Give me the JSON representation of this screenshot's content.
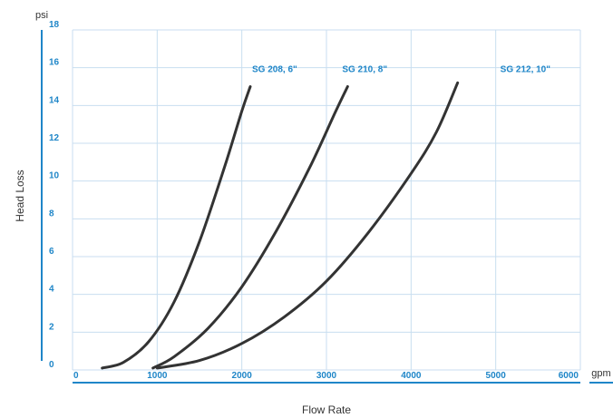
{
  "chart_data": {
    "type": "line",
    "xlabel": "Flow Rate",
    "ylabel": "Head Loss",
    "x_unit": "gpm",
    "y_unit": "psi",
    "xlim": [
      0,
      6000
    ],
    "ylim": [
      0,
      18
    ],
    "x_ticks": [
      0,
      1000,
      2000,
      3000,
      4000,
      5000,
      6000
    ],
    "y_ticks": [
      0,
      2,
      4,
      6,
      8,
      10,
      12,
      14,
      16,
      18
    ],
    "grid": true,
    "series": [
      {
        "name": "SG 208, 6\"",
        "x": [
          350,
          600,
          900,
          1200,
          1500,
          1800,
          2000,
          2100
        ],
        "y": [
          0.1,
          0.4,
          1.5,
          3.6,
          6.8,
          10.8,
          13.7,
          15.0
        ]
      },
      {
        "name": "SG 210, 8\"",
        "x": [
          950,
          1200,
          1600,
          2000,
          2400,
          2800,
          3100,
          3250
        ],
        "y": [
          0.1,
          0.7,
          2.2,
          4.4,
          7.3,
          10.7,
          13.6,
          15.0
        ]
      },
      {
        "name": "SG 212, 10\"",
        "x": [
          1000,
          1500,
          2000,
          2500,
          3000,
          3500,
          4000,
          4300,
          4550
        ],
        "y": [
          0.1,
          0.5,
          1.4,
          2.8,
          4.7,
          7.3,
          10.4,
          12.6,
          15.2
        ]
      }
    ],
    "series_colors": [
      "#333333",
      "#333333",
      "#333333"
    ],
    "label_color": "#1f86c8"
  }
}
